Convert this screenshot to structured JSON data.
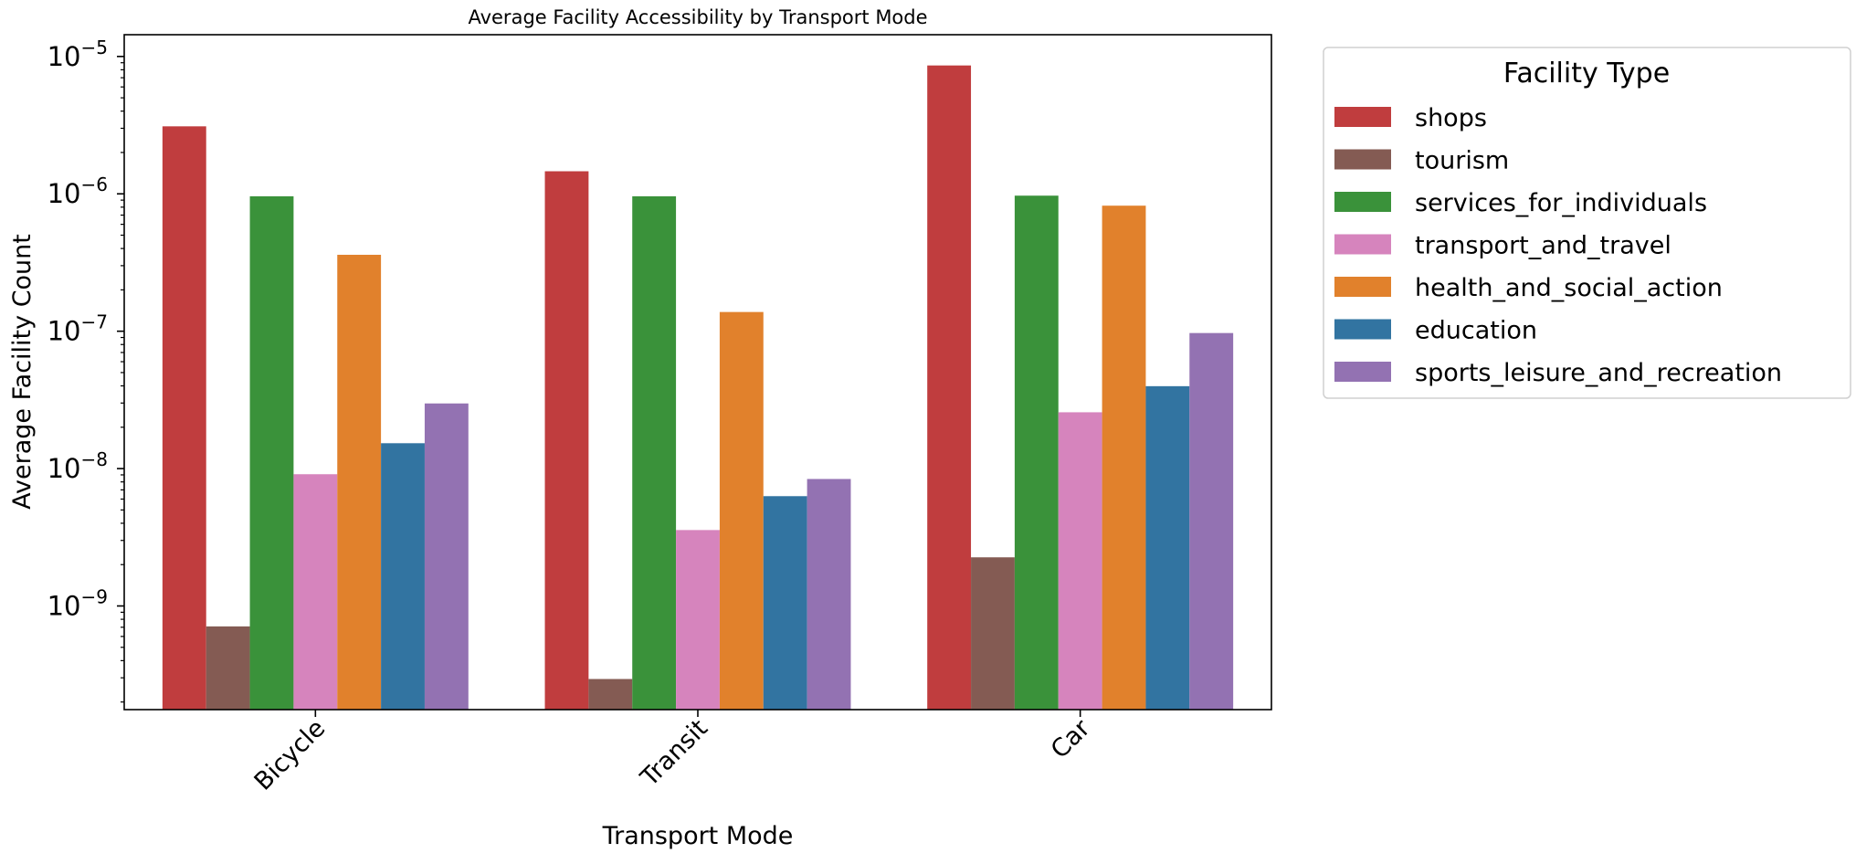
{
  "chart_data": {
    "type": "bar",
    "title": "Average Facility Accessibility by Transport Mode",
    "xlabel": "Transport Mode",
    "ylabel": "Average Facility Count",
    "yscale": "log",
    "ylim": [
      1.76e-10,
      1.44e-05
    ],
    "yticks": [
      {
        "value": 1e-05,
        "base": "10",
        "exp": "−5"
      },
      {
        "value": 1e-06,
        "base": "10",
        "exp": "−6"
      },
      {
        "value": 1e-07,
        "base": "10",
        "exp": "−7"
      },
      {
        "value": 1e-08,
        "base": "10",
        "exp": "−8"
      },
      {
        "value": 1e-09,
        "base": "10",
        "exp": "−9"
      }
    ],
    "grid": false,
    "categories": [
      "Bicycle",
      "Transit",
      "Car"
    ],
    "legend": {
      "title": "Facility Type",
      "placement": "outside-right"
    },
    "series": [
      {
        "name": "shops",
        "color": "#c03d3e",
        "values": [
          3.1e-06,
          1.46e-06,
          8.6e-06
        ]
      },
      {
        "name": "tourism",
        "color": "#845b53",
        "values": [
          7.1e-10,
          2.94e-10,
          2.26e-09
        ]
      },
      {
        "name": "services_for_individuals",
        "color": "#3a923a",
        "values": [
          9.6e-07,
          9.6e-07,
          9.7e-07
        ]
      },
      {
        "name": "transport_and_travel",
        "color": "#d684bd",
        "values": [
          9.1e-09,
          3.57e-09,
          2.57e-08
        ]
      },
      {
        "name": "health_and_social_action",
        "color": "#e1812c",
        "values": [
          3.6e-07,
          1.38e-07,
          8.2e-07
        ]
      },
      {
        "name": "education",
        "color": "#3274a1",
        "values": [
          1.53e-08,
          6.3e-09,
          3.98e-08
        ]
      },
      {
        "name": "sports_leisure_and_recreation",
        "color": "#9372b2",
        "values": [
          2.98e-08,
          8.4e-09,
          9.7e-08
        ]
      }
    ]
  }
}
